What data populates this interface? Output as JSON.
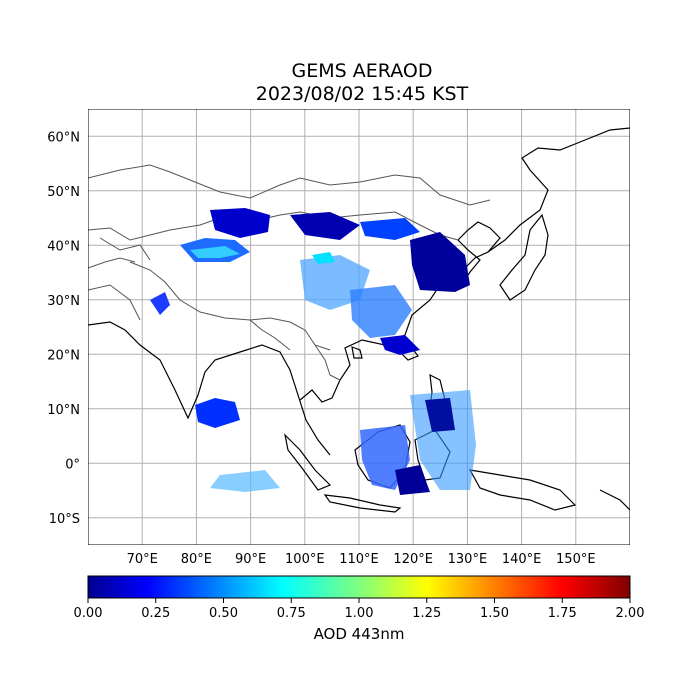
{
  "title": "GEMS AERAOD",
  "subtitle": "2023/08/02 15:45 KST",
  "lat_labels": [
    "60°N",
    "50°N",
    "40°N",
    "30°N",
    "20°N",
    "10°N",
    "0°",
    "10°S"
  ],
  "lon_labels": [
    "70°E",
    "80°E",
    "90°E",
    "100°E",
    "110°E",
    "120°E",
    "130°E",
    "140°E",
    "150°E"
  ],
  "colorbar": {
    "label": "AOD 443nm",
    "ticks": [
      "0.00",
      "0.25",
      "0.50",
      "0.75",
      "1.00",
      "1.25",
      "1.50",
      "1.75",
      "2.00"
    ],
    "range": [
      0,
      2
    ],
    "colormap": "jet"
  },
  "map": {
    "lon_range": [
      60,
      160
    ],
    "lat_range": [
      -15,
      65
    ],
    "grid": true,
    "grid_step_deg": 10
  },
  "colors": {
    "grid": "#b0b0b0",
    "coast": "#000000",
    "border": "#555555",
    "aod_low": "#00008f",
    "aod_mid": "#0000ff",
    "aod_high": "#00ffff"
  }
}
